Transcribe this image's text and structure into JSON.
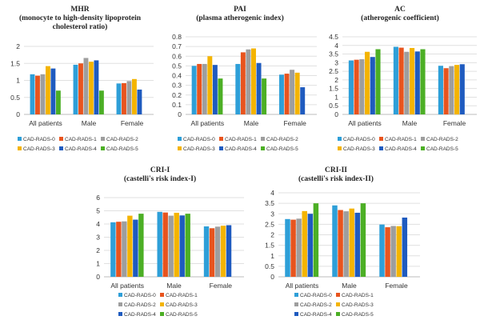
{
  "colors": [
    "#2e9fd8",
    "#e8541e",
    "#9e9e9e",
    "#f4b400",
    "#1f5bbf",
    "#4caf25"
  ],
  "legend": [
    "CAD-RADS-0",
    "CAD-RADS-1",
    "CAD-RADS-2",
    "CAD-RADS-3",
    "CAD-RADS-4",
    "CAD-RADS-5"
  ],
  "chart_data": [
    {
      "type": "bar",
      "title": "MHR",
      "subtitle": "(monocyte to high-density lipoprotein cholesterol ratio)",
      "categories": [
        "All patients",
        "Male",
        "Female"
      ],
      "ylim": [
        0,
        2
      ],
      "yticks": [
        0,
        0.5,
        1,
        1.5,
        2
      ],
      "ytick_labels": [
        "0",
        "0.5",
        "1",
        "1.5",
        "2"
      ],
      "grid": true,
      "legend_position": "bottom",
      "series": [
        {
          "name": "CAD-RADS-0",
          "values": [
            1.18,
            1.46,
            0.91
          ]
        },
        {
          "name": "CAD-RADS-1",
          "values": [
            1.14,
            1.5,
            0.92
          ]
        },
        {
          "name": "CAD-RADS-2",
          "values": [
            1.18,
            1.66,
            0.98
          ]
        },
        {
          "name": "CAD-RADS-3",
          "values": [
            1.42,
            1.55,
            1.04
          ]
        },
        {
          "name": "CAD-RADS-4",
          "values": [
            1.35,
            1.59,
            0.73
          ]
        },
        {
          "name": "CAD-RADS-5",
          "values": [
            0.7,
            0.7,
            null
          ]
        }
      ]
    },
    {
      "type": "bar",
      "title": "PAI",
      "subtitle": "(plasma atherogenic index)",
      "categories": [
        "All patients",
        "Male",
        "Female"
      ],
      "ylim": [
        0,
        0.8
      ],
      "yticks": [
        0,
        0.1,
        0.2,
        0.3,
        0.4,
        0.5,
        0.6,
        0.7,
        0.8
      ],
      "ytick_labels": [
        "0",
        "0.1",
        "0.2",
        "0.3",
        "0.4",
        "0.5",
        "0.6",
        "0.7",
        "0.8"
      ],
      "grid": true,
      "legend_position": "bottom",
      "series": [
        {
          "name": "CAD-RADS-0",
          "values": [
            0.5,
            0.52,
            0.41
          ]
        },
        {
          "name": "CAD-RADS-1",
          "values": [
            0.52,
            0.64,
            0.42
          ]
        },
        {
          "name": "CAD-RADS-2",
          "values": [
            0.52,
            0.67,
            0.46
          ]
        },
        {
          "name": "CAD-RADS-3",
          "values": [
            0.6,
            0.68,
            0.43
          ]
        },
        {
          "name": "CAD-RADS-4",
          "values": [
            0.51,
            0.53,
            0.28
          ]
        },
        {
          "name": "CAD-RADS-5",
          "values": [
            0.37,
            0.37,
            null
          ]
        }
      ]
    },
    {
      "type": "bar",
      "title": "AC",
      "subtitle": "(atherogenic coefficient)",
      "categories": [
        "All patients",
        "Male",
        "Female"
      ],
      "ylim": [
        0,
        4.5
      ],
      "yticks": [
        0,
        0.5,
        1,
        1.5,
        2,
        2.5,
        3,
        3.5,
        4,
        4.5
      ],
      "ytick_labels": [
        "0",
        "0.5",
        "1",
        "1.5",
        "2",
        "2.5",
        "3",
        "3.5",
        "4",
        "4.5"
      ],
      "grid": true,
      "legend_position": "bottom",
      "series": [
        {
          "name": "CAD-RADS-0",
          "values": [
            3.13,
            3.92,
            2.82
          ]
        },
        {
          "name": "CAD-RADS-1",
          "values": [
            3.17,
            3.87,
            2.68
          ]
        },
        {
          "name": "CAD-RADS-2",
          "values": [
            3.2,
            3.63,
            2.8
          ]
        },
        {
          "name": "CAD-RADS-3",
          "values": [
            3.63,
            3.85,
            2.87
          ]
        },
        {
          "name": "CAD-RADS-4",
          "values": [
            3.33,
            3.65,
            2.91
          ]
        },
        {
          "name": "CAD-RADS-5",
          "values": [
            3.78,
            3.78,
            null
          ]
        }
      ]
    },
    {
      "type": "bar",
      "title": "CRI-I",
      "subtitle": "(castelli's risk index-I)",
      "categories": [
        "All patients",
        "Male",
        "Female"
      ],
      "ylim": [
        0,
        6
      ],
      "yticks": [
        0,
        1,
        2,
        3,
        4,
        5,
        6
      ],
      "ytick_labels": [
        "0",
        "1",
        "2",
        "3",
        "4",
        "5",
        "6"
      ],
      "grid": true,
      "legend_position": "bottom",
      "series": [
        {
          "name": "CAD-RADS-0",
          "values": [
            4.13,
            4.92,
            3.82
          ]
        },
        {
          "name": "CAD-RADS-1",
          "values": [
            4.17,
            4.87,
            3.68
          ]
        },
        {
          "name": "CAD-RADS-2",
          "values": [
            4.2,
            4.63,
            3.8
          ]
        },
        {
          "name": "CAD-RADS-3",
          "values": [
            4.63,
            4.85,
            3.87
          ]
        },
        {
          "name": "CAD-RADS-4",
          "values": [
            4.33,
            4.65,
            3.91
          ]
        },
        {
          "name": "CAD-RADS-5",
          "values": [
            4.78,
            4.78,
            null
          ]
        }
      ]
    },
    {
      "type": "bar",
      "title": "CRI-II",
      "subtitle": "(castelli's risk index-II)",
      "categories": [
        "All patients",
        "Male",
        "Female"
      ],
      "ylim": [
        0,
        4
      ],
      "yticks": [
        0,
        0.5,
        1,
        1.5,
        2,
        2.5,
        3,
        3.5,
        4
      ],
      "ytick_labels": [
        "0",
        "0.5",
        "1",
        "1.5",
        "2",
        "2.5",
        "3",
        "3.5",
        "4"
      ],
      "grid": true,
      "legend_position": "bottom",
      "series": [
        {
          "name": "CAD-RADS-0",
          "values": [
            2.75,
            3.4,
            2.49
          ]
        },
        {
          "name": "CAD-RADS-1",
          "values": [
            2.72,
            3.18,
            2.36
          ]
        },
        {
          "name": "CAD-RADS-2",
          "values": [
            2.77,
            3.12,
            2.42
          ]
        },
        {
          "name": "CAD-RADS-3",
          "values": [
            3.13,
            3.25,
            2.41
          ]
        },
        {
          "name": "CAD-RADS-4",
          "values": [
            3.0,
            3.05,
            2.82
          ]
        },
        {
          "name": "CAD-RADS-5",
          "values": [
            3.5,
            3.5,
            null
          ]
        }
      ]
    }
  ]
}
